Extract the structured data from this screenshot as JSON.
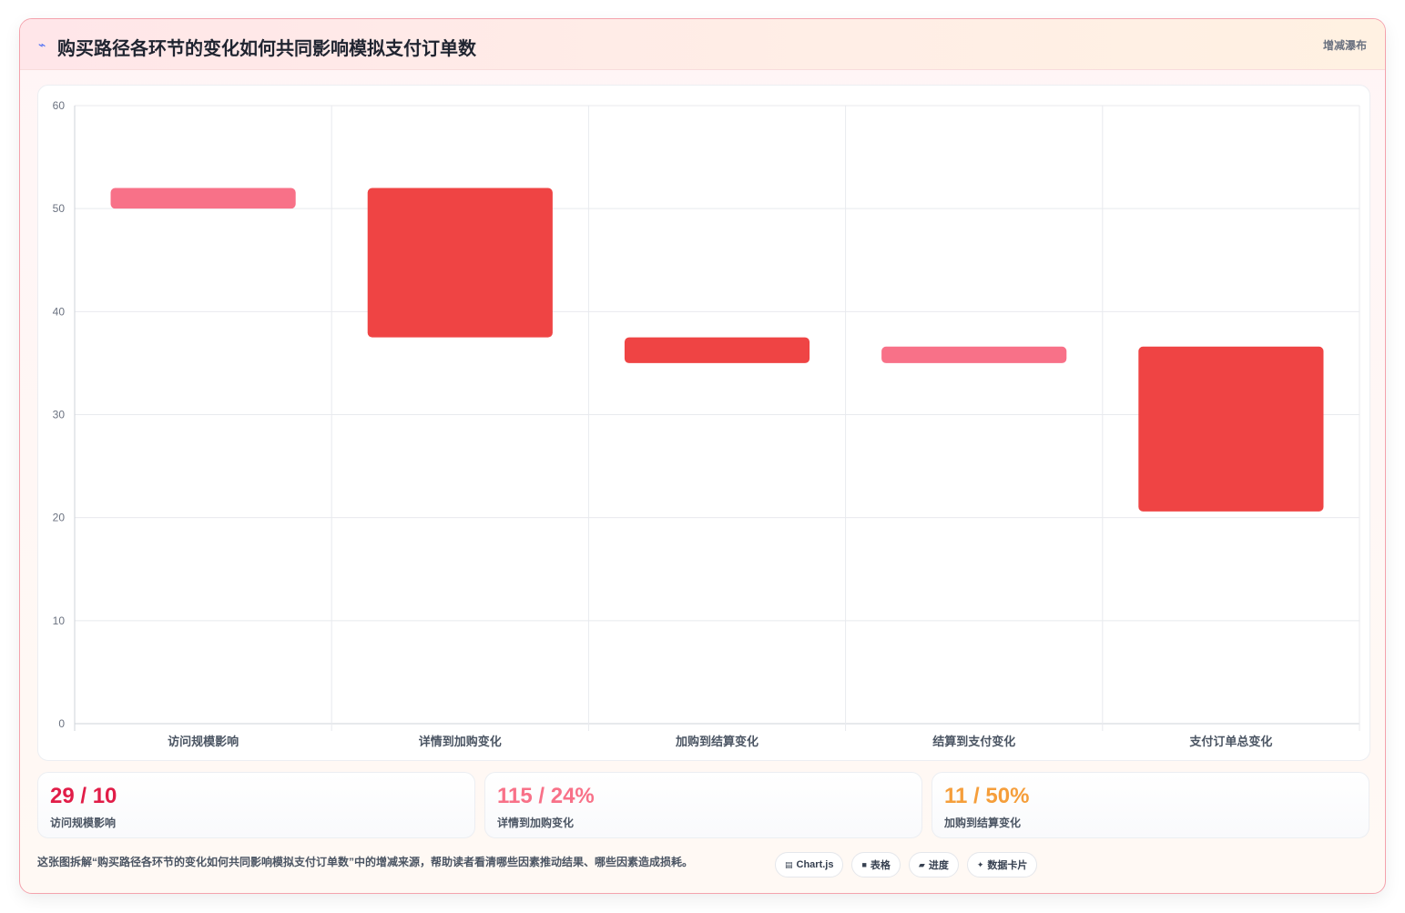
{
  "header": {
    "icon": "trend-line-icon",
    "title": "购买路径各环节的变化如何共同影响模拟支付订单数",
    "tag": "增减瀑布"
  },
  "chart_data": {
    "type": "bar",
    "subtype": "waterfall",
    "categories": [
      "访问规模影响",
      "详情到加购变化",
      "加购到结算变化",
      "结算到支付变化",
      "支付订单总变化"
    ],
    "series": [
      {
        "ranges": [
          [
            50,
            52
          ],
          [
            37.5,
            52
          ],
          [
            35,
            37.5
          ],
          [
            35,
            36.6
          ],
          [
            20.6,
            36.6
          ]
        ]
      }
    ],
    "bar_colors": [
      "#f87188",
      "#ef4444",
      "#ef4444",
      "#f87188",
      "#ef4444"
    ],
    "ylim": [
      0,
      60
    ],
    "yticks": [
      0,
      10,
      20,
      30,
      40,
      50,
      60
    ],
    "grid": true,
    "legend": "none"
  },
  "stats": [
    {
      "value": "29 / 10",
      "label": "访问规模影响",
      "color": "#e11d48"
    },
    {
      "value": "115 / 24%",
      "label": "详情到加购变化",
      "color": "#f87188"
    },
    {
      "value": "11 / 50%",
      "label": "加购到结算变化",
      "color": "#f59e3b"
    }
  ],
  "footer": {
    "text": "这张图拆解“购买路径各环节的变化如何共同影响模拟支付订单数”中的增减来源，帮助读者看清哪些因素推动结果、哪些因素造成损耗。",
    "pills": [
      {
        "icon": "chart-icon",
        "glyph": "▤",
        "label": "Chart.js"
      },
      {
        "icon": "table-icon",
        "glyph": "■",
        "label": "表格"
      },
      {
        "icon": "progress-icon",
        "glyph": "▰",
        "label": "进度"
      },
      {
        "icon": "data-card-icon",
        "glyph": "✦",
        "label": "数据卡片"
      }
    ]
  }
}
